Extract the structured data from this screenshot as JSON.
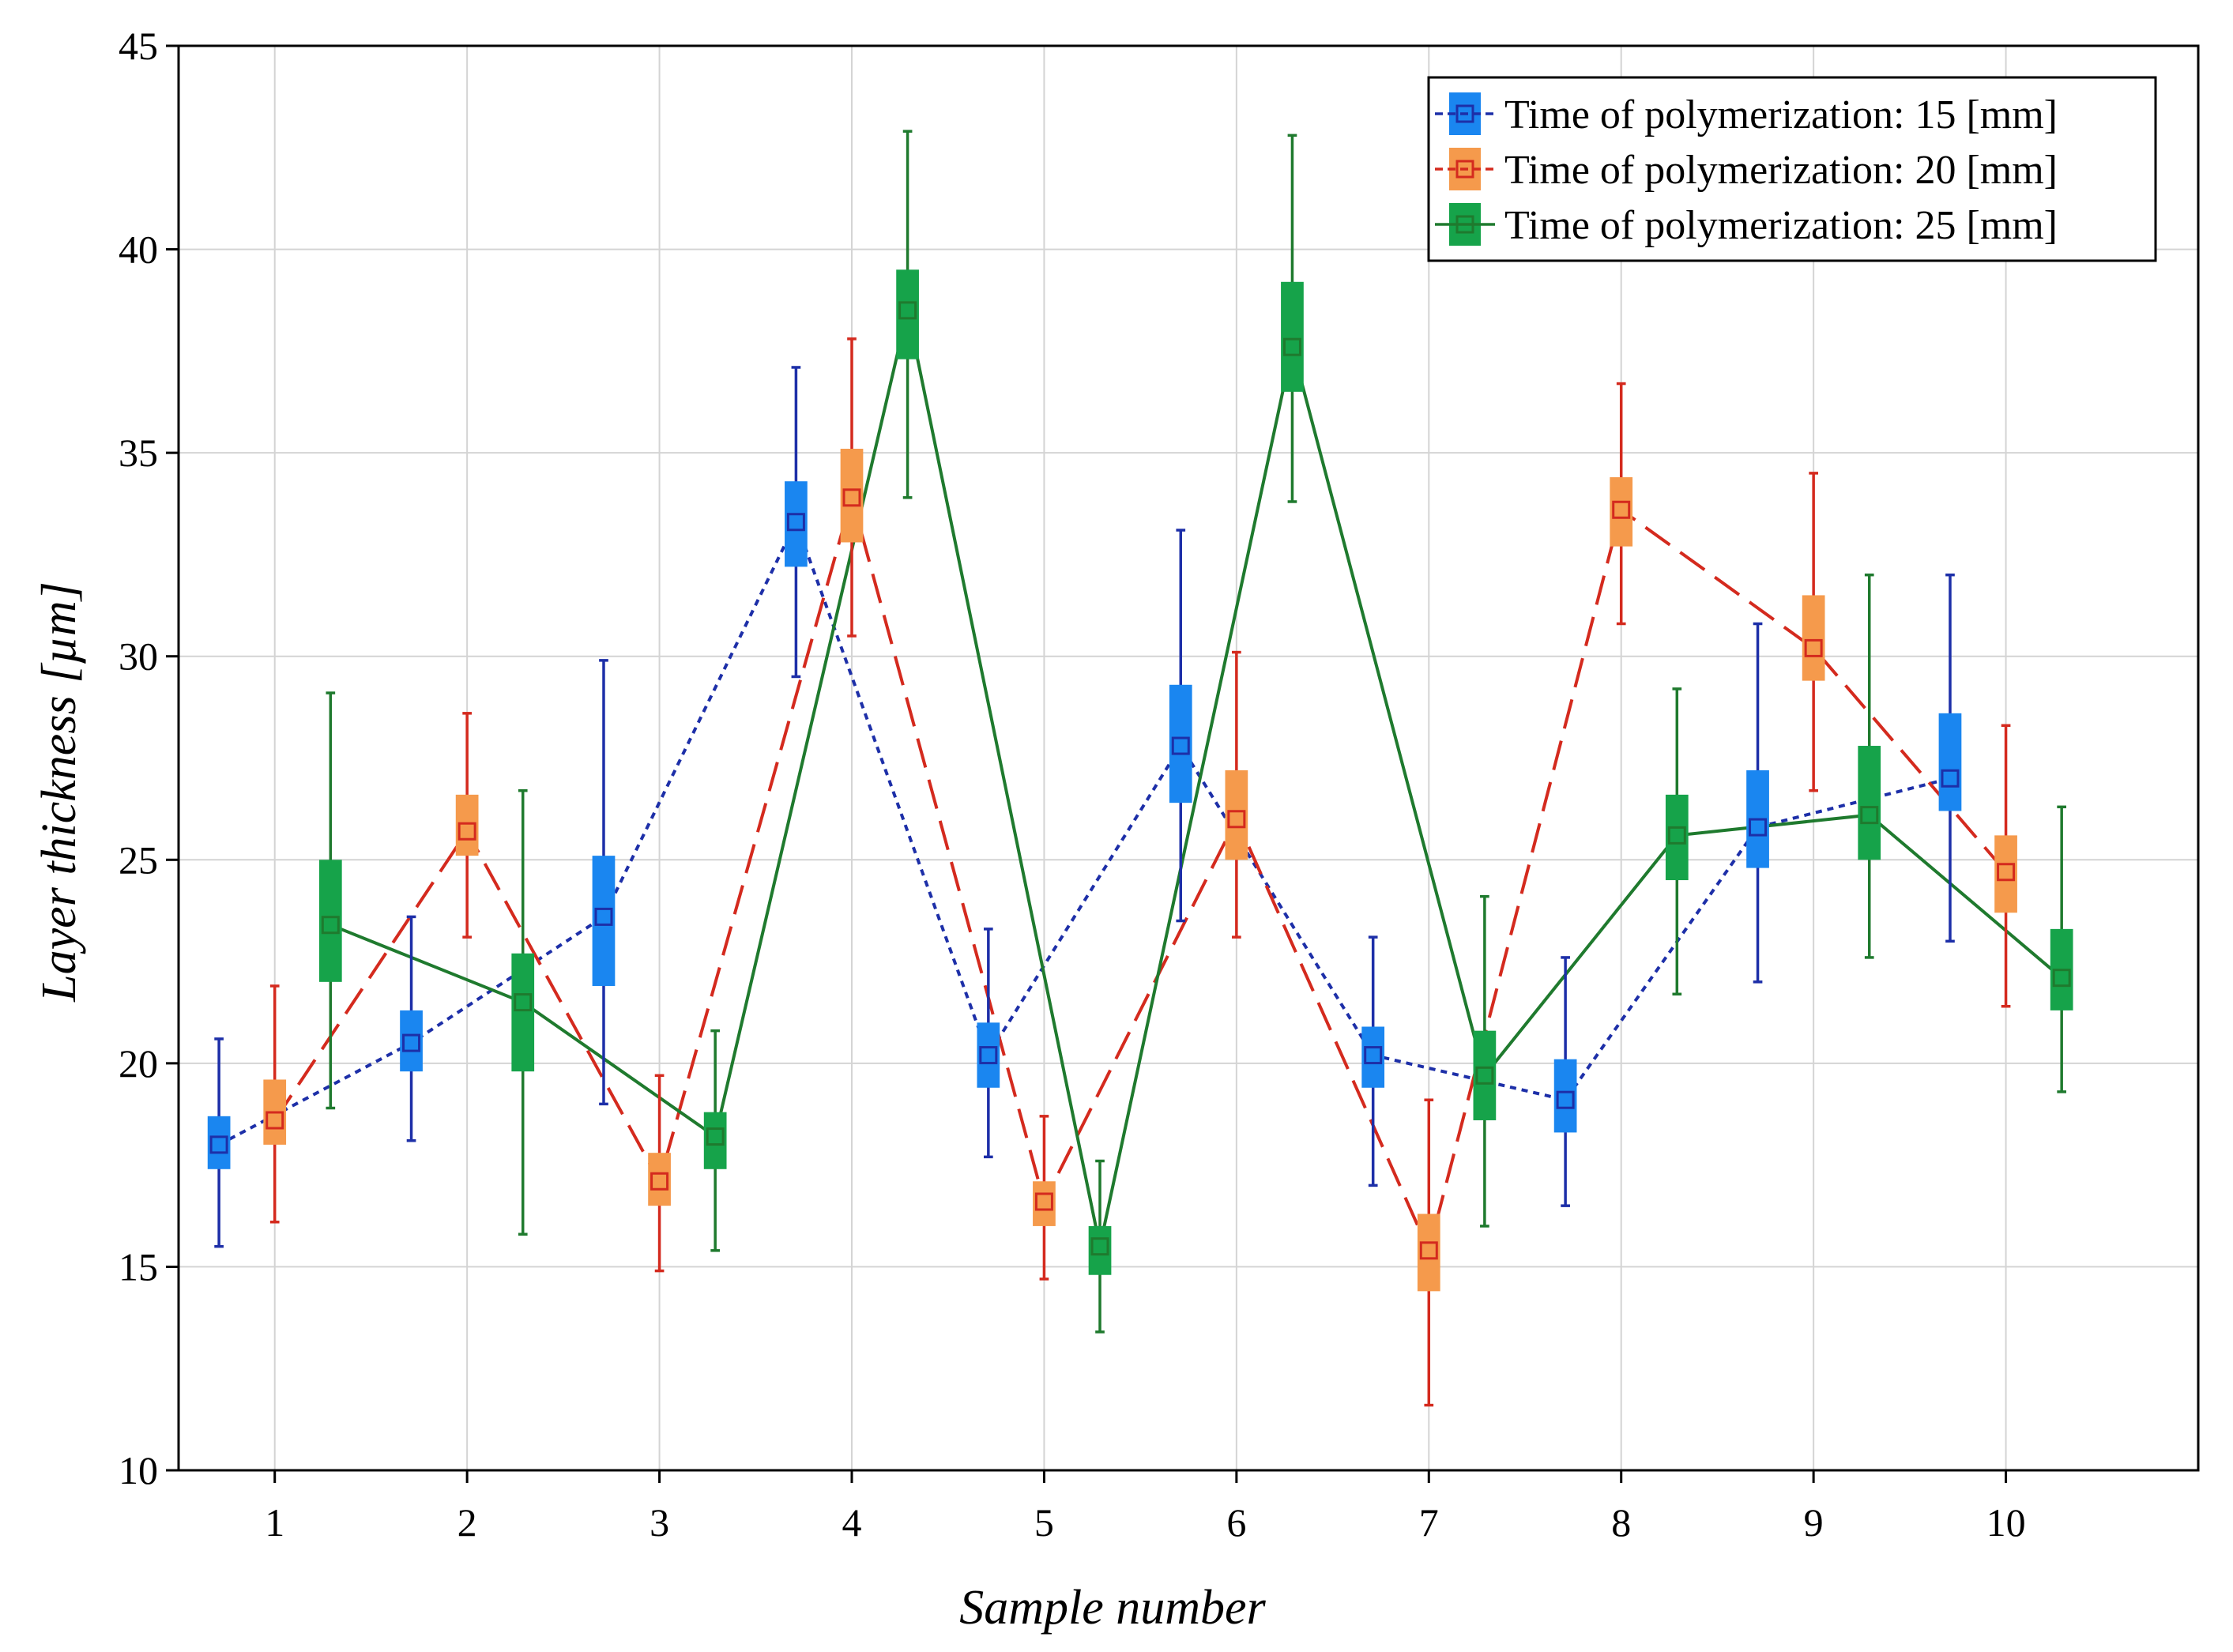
{
  "chart_data": {
    "type": "box",
    "title": "",
    "xlabel": "Sample number",
    "ylabel": "Layer thickness [µm]",
    "ylim": [
      10,
      45
    ],
    "yticks": [
      "10",
      "15",
      "20",
      "25",
      "30",
      "35",
      "40",
      "45"
    ],
    "categories": [
      "1",
      "2",
      "3",
      "4",
      "5",
      "6",
      "7",
      "8",
      "9",
      "10"
    ],
    "grid": true,
    "legend_position": "top-right",
    "series": [
      {
        "name": "Time of polymerization: 15 [mm]",
        "box_color": "#1a86f0",
        "line_color": "#1d2fa8",
        "line_style": "dotted",
        "mean": [
          18.0,
          20.5,
          23.6,
          33.3,
          20.2,
          27.8,
          20.2,
          19.1,
          25.8,
          27.0
        ],
        "box_low": [
          17.4,
          19.8,
          21.9,
          32.2,
          19.4,
          26.4,
          19.4,
          18.3,
          24.8,
          26.2
        ],
        "box_high": [
          18.7,
          21.3,
          25.1,
          34.3,
          21.0,
          29.3,
          20.9,
          20.1,
          27.2,
          28.6
        ],
        "whisker_low": [
          15.5,
          18.1,
          19.0,
          29.5,
          17.7,
          23.5,
          17.0,
          16.5,
          22.0,
          23.0
        ],
        "whisker_high": [
          20.6,
          23.6,
          29.9,
          37.1,
          23.3,
          33.1,
          23.1,
          22.6,
          30.8,
          32.0
        ]
      },
      {
        "name": "Time of polymerization: 20 [mm]",
        "box_color": "#f59a4c",
        "line_color": "#d42a1e",
        "line_style": "dashed",
        "mean": [
          18.6,
          25.7,
          17.1,
          33.9,
          16.6,
          26.0,
          15.4,
          33.6,
          30.2,
          24.7
        ],
        "box_low": [
          18.0,
          25.1,
          16.5,
          32.8,
          16.0,
          25.0,
          14.4,
          32.7,
          29.4,
          23.7
        ],
        "box_high": [
          19.6,
          26.6,
          17.8,
          35.1,
          17.1,
          27.2,
          16.3,
          34.4,
          31.5,
          25.6
        ],
        "whisker_low": [
          16.1,
          23.1,
          14.9,
          30.5,
          14.7,
          23.1,
          11.6,
          30.8,
          26.7,
          21.4
        ],
        "whisker_high": [
          21.9,
          28.6,
          19.7,
          37.8,
          18.7,
          30.1,
          19.1,
          36.7,
          34.5,
          28.3
        ]
      },
      {
        "name": "Time of polymerization: 25 [mm]",
        "box_color": "#16a34a",
        "line_color": "#1f7a2e",
        "line_style": "solid",
        "mean": [
          23.4,
          21.5,
          18.2,
          38.5,
          15.5,
          37.6,
          19.7,
          25.6,
          26.1,
          22.1
        ],
        "box_low": [
          22.0,
          19.8,
          17.4,
          37.3,
          14.8,
          36.5,
          18.6,
          24.5,
          25.0,
          21.3
        ],
        "box_high": [
          25.0,
          22.7,
          18.8,
          39.5,
          16.0,
          39.2,
          20.8,
          26.6,
          27.8,
          23.3
        ],
        "whisker_low": [
          18.9,
          15.8,
          15.4,
          33.9,
          13.4,
          33.8,
          16.0,
          21.7,
          22.6,
          19.3
        ],
        "whisker_high": [
          29.1,
          26.7,
          20.8,
          42.9,
          17.6,
          42.8,
          24.1,
          29.2,
          32.0,
          26.3
        ]
      }
    ]
  }
}
